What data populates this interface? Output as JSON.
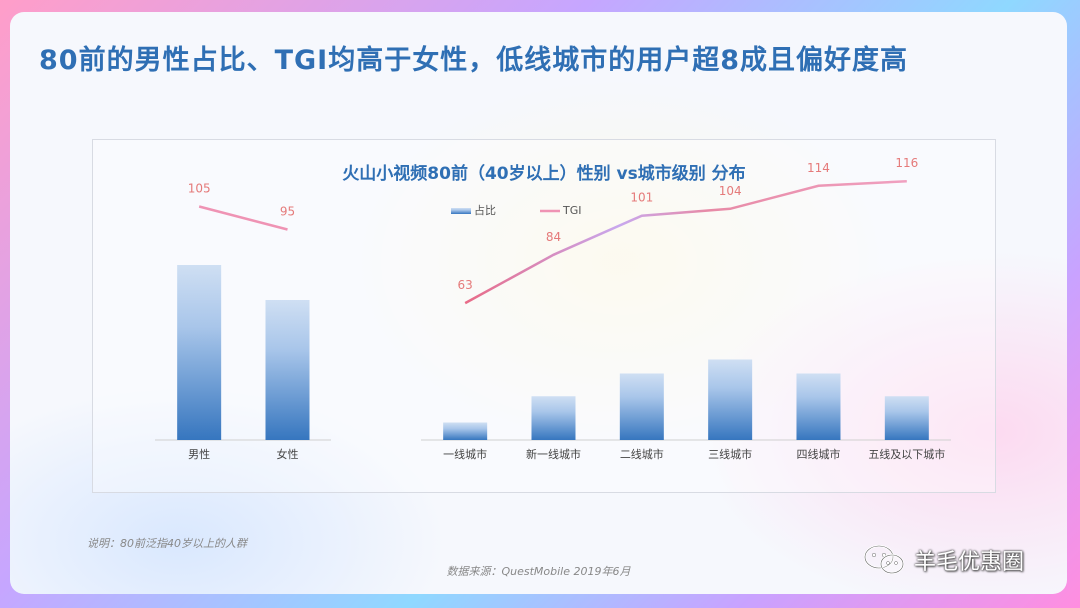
{
  "headline": "80前的男性占比、TGI均高于女性，低线城市的用户超8成且偏好度高",
  "note": "说明：80前泛指40岁以上的人群",
  "source": "数据来源：QuestMobile 2019年6月",
  "watermark": "羊毛优惠圈",
  "chart_data": {
    "type": "bar",
    "title": "火山小视频80前（40岁以上）性别 vs城市级别 分布",
    "legend_position": "top-center",
    "grid": false,
    "series": [
      {
        "name": "占比",
        "type": "bar",
        "color": "#3b7cc4"
      },
      {
        "name": "TGI",
        "type": "line",
        "color": "#ef93b4"
      }
    ],
    "groups": [
      {
        "categories": [
          "男性",
          "女性"
        ],
        "share": [
          1.0,
          0.8
        ],
        "tgi": [
          105,
          95
        ],
        "tgi_labels": [
          "105",
          "95"
        ]
      },
      {
        "categories": [
          "一线城市",
          "新一线城市",
          "二线城市",
          "三线城市",
          "四线城市",
          "五线及以下城市"
        ],
        "share": [
          0.1,
          0.25,
          0.38,
          0.46,
          0.38,
          0.25
        ],
        "tgi": [
          63,
          84,
          101,
          104,
          114,
          116
        ],
        "tgi_labels": [
          "63",
          "84",
          "101",
          "104",
          "114",
          "116"
        ]
      }
    ]
  }
}
